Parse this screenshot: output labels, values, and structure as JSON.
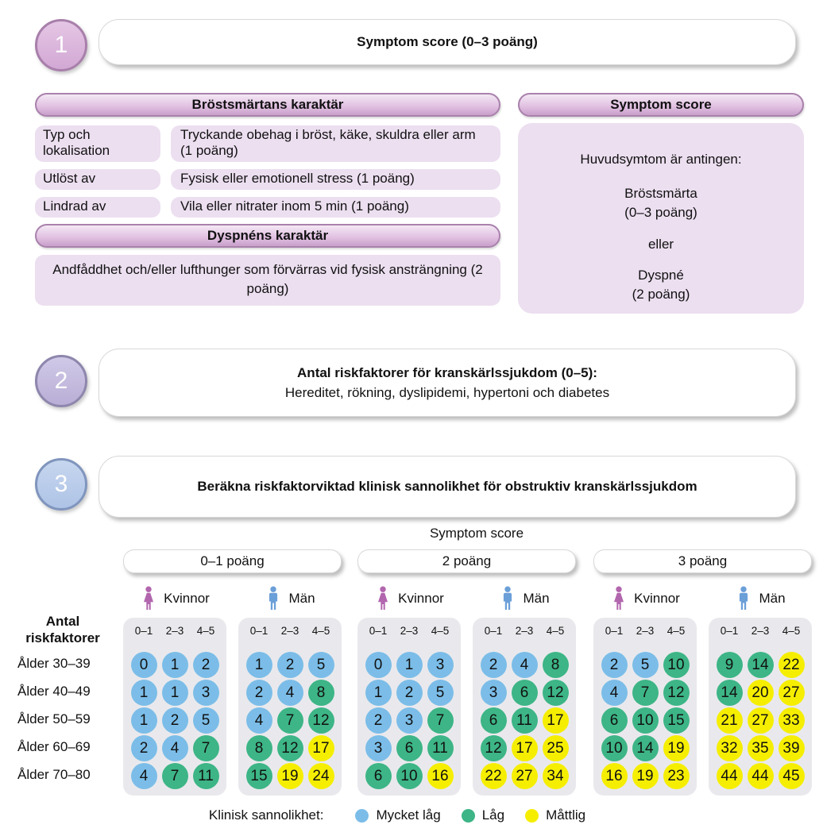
{
  "colors": {
    "blue": "#7bbde8",
    "green": "#3db586",
    "yellow": "#f6ee00",
    "woman": "#b266ae",
    "man": "#6b9fd8",
    "panel_bg": "#e9e9ed",
    "pink_box_bg": "#ecdff0",
    "pink_header_border": "#a981ac",
    "step1_border": "#a87fab",
    "step2_border": "#8e86ac",
    "step3_border": "#8095bd"
  },
  "steps": {
    "one": {
      "number": "1",
      "title": "Symptom score (0–3 poäng)"
    },
    "two": {
      "number": "2",
      "line1": "Antal riskfaktorer för kranskärlssjukdom (0–5):",
      "line2": "Hereditet, rökning, dyslipidemi, hypertoni och diabetes"
    },
    "three": {
      "number": "3",
      "title": "Beräkna riskfaktorviktad klinisk sannolikhet för obstruktiv kranskärlssjukdom"
    }
  },
  "chest_pain": {
    "header": "Bröstsmärtans karaktär",
    "rows": [
      {
        "label": "Typ och lokalisation",
        "desc": "Tryckande obehag i bröst, käke, skuldra eller arm (1 poäng)"
      },
      {
        "label": "Utlöst av",
        "desc": "Fysisk eller emotionell stress (1 poäng)"
      },
      {
        "label": "Lindrad av",
        "desc": "Vila eller nitrater inom 5 min (1 poäng)"
      }
    ]
  },
  "dyspnea": {
    "header": "Dyspnéns karaktär",
    "desc": "Andfåddhet och/eller lufthunger som förvärras vid fysisk ansträngning (2 poäng)"
  },
  "symptom_score_panel": {
    "header": "Symptom score",
    "lines": [
      "Huvudsymtom är antingen:",
      "Bröstsmärta",
      "(0–3 poäng)",
      "eller",
      "Dyspné",
      "(2 poäng)"
    ]
  },
  "risk_table": {
    "column_axis_label": "Symptom score",
    "row_axis_label_line1": "Antal",
    "row_axis_label_line2": "riskfaktorer",
    "risk_factor_headers": [
      "0–1",
      "2–3",
      "4–5"
    ],
    "age_labels": [
      "Ålder 30–39",
      "Ålder 40–49",
      "Ålder 50–59",
      "Ålder 60–69",
      "Ålder 70–80"
    ],
    "groups": [
      {
        "score_label": "0–1 poäng",
        "panels": [
          {
            "gender": "Kvinnor",
            "icon": "woman-icon",
            "rows": [
              [
                0,
                1,
                2
              ],
              [
                1,
                1,
                3
              ],
              [
                1,
                2,
                5
              ],
              [
                2,
                4,
                7
              ],
              [
                4,
                7,
                11
              ]
            ]
          },
          {
            "gender": "Män",
            "icon": "man-icon",
            "rows": [
              [
                1,
                2,
                5
              ],
              [
                2,
                4,
                8
              ],
              [
                4,
                7,
                12
              ],
              [
                8,
                12,
                17
              ],
              [
                15,
                19,
                24
              ]
            ]
          }
        ]
      },
      {
        "score_label": "2 poäng",
        "panels": [
          {
            "gender": "Kvinnor",
            "icon": "woman-icon",
            "rows": [
              [
                0,
                1,
                3
              ],
              [
                1,
                2,
                5
              ],
              [
                2,
                3,
                7
              ],
              [
                3,
                6,
                11
              ],
              [
                6,
                10,
                16
              ]
            ]
          },
          {
            "gender": "Män",
            "icon": "man-icon",
            "rows": [
              [
                2,
                4,
                8
              ],
              [
                3,
                6,
                12
              ],
              [
                6,
                11,
                17
              ],
              [
                12,
                17,
                25
              ],
              [
                22,
                27,
                34
              ]
            ]
          }
        ]
      },
      {
        "score_label": "3 poäng",
        "panels": [
          {
            "gender": "Kvinnor",
            "icon": "woman-icon",
            "rows": [
              [
                2,
                5,
                10
              ],
              [
                4,
                7,
                12
              ],
              [
                6,
                10,
                15
              ],
              [
                10,
                14,
                19
              ],
              [
                16,
                19,
                23
              ]
            ]
          },
          {
            "gender": "Män",
            "icon": "man-icon",
            "rows": [
              [
                9,
                14,
                22
              ],
              [
                14,
                20,
                27
              ],
              [
                21,
                27,
                33
              ],
              [
                32,
                35,
                39
              ],
              [
                44,
                44,
                45
              ]
            ]
          }
        ]
      }
    ]
  },
  "legend": {
    "title": "Klinisk sannolikhet:",
    "items": [
      {
        "label": "Mycket låg",
        "color": "#7bbde8"
      },
      {
        "label": "Låg",
        "color": "#3db586"
      },
      {
        "label": "Måttlig",
        "color": "#f6ee00"
      }
    ]
  }
}
